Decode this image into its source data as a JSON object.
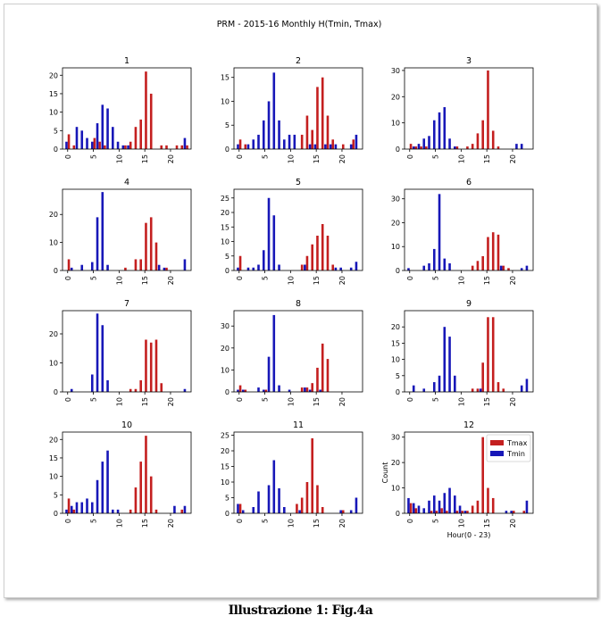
{
  "caption": "Illustrazione   1: Fig.4a",
  "colors": {
    "tmax": "#c41f1f",
    "tmin": "#1717b8",
    "axis": "#000000"
  },
  "chart_data": {
    "type": "bar",
    "title": "PRM - 2015-16 Monthly H(Tmin, Tmax)",
    "legend": {
      "placement": "top-right",
      "subplot": "12",
      "entries": [
        "Tmax",
        "Tmin"
      ]
    },
    "x_ticks": [
      "0",
      "5",
      "10",
      "15",
      "20"
    ],
    "x_range": [
      0,
      24
    ],
    "subplots": [
      {
        "title": "1",
        "ylim": [
          0,
          22
        ],
        "yticks": [
          "0",
          "5",
          "10",
          "15",
          "20"
        ],
        "tmax": [
          [
            0,
            4
          ],
          [
            1,
            1
          ],
          [
            5,
            3
          ],
          [
            6,
            2
          ],
          [
            7,
            1
          ],
          [
            11,
            1
          ],
          [
            12,
            2
          ],
          [
            13,
            6
          ],
          [
            14,
            8
          ],
          [
            15,
            21
          ],
          [
            16,
            15
          ],
          [
            18,
            1
          ],
          [
            19,
            1
          ],
          [
            21,
            1
          ],
          [
            22,
            1
          ],
          [
            23,
            1
          ]
        ],
        "tmin": [
          [
            0,
            2
          ],
          [
            2,
            6
          ],
          [
            3,
            5
          ],
          [
            4,
            3
          ],
          [
            5,
            2
          ],
          [
            6,
            7
          ],
          [
            7,
            12
          ],
          [
            8,
            11
          ],
          [
            9,
            6
          ],
          [
            10,
            2
          ],
          [
            11,
            1
          ],
          [
            12,
            1
          ],
          [
            23,
            3
          ]
        ]
      },
      {
        "title": "2",
        "ylim": [
          0,
          17
        ],
        "yticks": [
          "0",
          "5",
          "10",
          "15"
        ],
        "tmax": [
          [
            0,
            2
          ],
          [
            1,
            1
          ],
          [
            12,
            3
          ],
          [
            13,
            7
          ],
          [
            14,
            4
          ],
          [
            15,
            13
          ],
          [
            16,
            15
          ],
          [
            17,
            7
          ],
          [
            18,
            2
          ],
          [
            20,
            1
          ],
          [
            22,
            2
          ]
        ],
        "tmin": [
          [
            0,
            1
          ],
          [
            2,
            1
          ],
          [
            3,
            2
          ],
          [
            4,
            3
          ],
          [
            5,
            6
          ],
          [
            6,
            10
          ],
          [
            7,
            16
          ],
          [
            8,
            6
          ],
          [
            9,
            2
          ],
          [
            10,
            3
          ],
          [
            11,
            3
          ],
          [
            14,
            1
          ],
          [
            15,
            1
          ],
          [
            17,
            1
          ],
          [
            18,
            1
          ],
          [
            19,
            1
          ],
          [
            22,
            1
          ],
          [
            23,
            3
          ]
        ]
      },
      {
        "title": "3",
        "ylim": [
          0,
          31
        ],
        "yticks": [
          "0",
          "10",
          "20",
          "30"
        ],
        "tmax": [
          [
            0,
            2
          ],
          [
            1,
            1
          ],
          [
            2,
            1
          ],
          [
            3,
            1
          ],
          [
            9,
            1
          ],
          [
            11,
            1
          ],
          [
            12,
            2
          ],
          [
            13,
            6
          ],
          [
            14,
            11
          ],
          [
            15,
            30
          ],
          [
            16,
            7
          ],
          [
            17,
            1
          ]
        ],
        "tmin": [
          [
            1,
            1
          ],
          [
            2,
            2
          ],
          [
            3,
            4
          ],
          [
            4,
            5
          ],
          [
            5,
            11
          ],
          [
            6,
            14
          ],
          [
            7,
            16
          ],
          [
            8,
            4
          ],
          [
            9,
            1
          ],
          [
            21,
            2
          ],
          [
            22,
            2
          ]
        ]
      },
      {
        "title": "4",
        "ylim": [
          0,
          29
        ],
        "yticks": [
          "0",
          "10",
          "20"
        ],
        "tmax": [
          [
            0,
            4
          ],
          [
            11,
            1
          ],
          [
            13,
            4
          ],
          [
            14,
            4
          ],
          [
            15,
            17
          ],
          [
            16,
            19
          ],
          [
            17,
            10
          ],
          [
            19,
            1
          ]
        ],
        "tmin": [
          [
            1,
            1
          ],
          [
            3,
            2
          ],
          [
            5,
            3
          ],
          [
            6,
            19
          ],
          [
            7,
            28
          ],
          [
            8,
            2
          ],
          [
            18,
            2
          ],
          [
            19,
            1
          ],
          [
            23,
            4
          ]
        ]
      },
      {
        "title": "5",
        "ylim": [
          0,
          28
        ],
        "yticks": [
          "0",
          "5",
          "10",
          "15",
          "20",
          "25"
        ],
        "tmax": [
          [
            0,
            5
          ],
          [
            12,
            2
          ],
          [
            13,
            5
          ],
          [
            14,
            9
          ],
          [
            15,
            12
          ],
          [
            16,
            16
          ],
          [
            17,
            12
          ],
          [
            18,
            2
          ]
        ],
        "tmin": [
          [
            0,
            1
          ],
          [
            2,
            1
          ],
          [
            3,
            1
          ],
          [
            4,
            2
          ],
          [
            5,
            7
          ],
          [
            6,
            25
          ],
          [
            7,
            19
          ],
          [
            8,
            2
          ],
          [
            13,
            2
          ],
          [
            19,
            1
          ],
          [
            20,
            1
          ],
          [
            22,
            1
          ],
          [
            23,
            3
          ]
        ]
      },
      {
        "title": "6",
        "ylim": [
          0,
          34
        ],
        "yticks": [
          "0",
          "10",
          "20",
          "30"
        ],
        "tmax": [
          [
            12,
            2
          ],
          [
            13,
            4
          ],
          [
            14,
            6
          ],
          [
            15,
            14
          ],
          [
            16,
            16
          ],
          [
            17,
            15
          ],
          [
            18,
            2
          ],
          [
            19,
            1
          ]
        ],
        "tmin": [
          [
            0,
            1
          ],
          [
            3,
            2
          ],
          [
            4,
            3
          ],
          [
            5,
            9
          ],
          [
            6,
            32
          ],
          [
            7,
            5
          ],
          [
            8,
            3
          ],
          [
            18,
            2
          ],
          [
            22,
            1
          ],
          [
            23,
            2
          ]
        ]
      },
      {
        "title": "7",
        "ylim": [
          0,
          28
        ],
        "yticks": [
          "0",
          "10",
          "20"
        ],
        "tmax": [
          [
            12,
            1
          ],
          [
            13,
            1
          ],
          [
            14,
            4
          ],
          [
            15,
            18
          ],
          [
            16,
            17
          ],
          [
            17,
            18
          ],
          [
            18,
            3
          ]
        ],
        "tmin": [
          [
            1,
            1
          ],
          [
            5,
            6
          ],
          [
            6,
            27
          ],
          [
            7,
            23
          ],
          [
            8,
            4
          ],
          [
            23,
            1
          ]
        ]
      },
      {
        "title": "8",
        "ylim": [
          0,
          37
        ],
        "yticks": [
          "0",
          "10",
          "20",
          "30"
        ],
        "tmax": [
          [
            0,
            3
          ],
          [
            1,
            1
          ],
          [
            5,
            1
          ],
          [
            12,
            2
          ],
          [
            13,
            2
          ],
          [
            14,
            4
          ],
          [
            15,
            11
          ],
          [
            16,
            22
          ],
          [
            17,
            15
          ]
        ],
        "tmin": [
          [
            0,
            1
          ],
          [
            1,
            1
          ],
          [
            4,
            2
          ],
          [
            5,
            1
          ],
          [
            6,
            16
          ],
          [
            7,
            35
          ],
          [
            8,
            3
          ],
          [
            10,
            1
          ],
          [
            13,
            2
          ],
          [
            14,
            1
          ],
          [
            16,
            1
          ]
        ]
      },
      {
        "title": "9",
        "ylim": [
          0,
          25
        ],
        "yticks": [
          "0",
          "5",
          "10",
          "15",
          "20"
        ],
        "tmax": [
          [
            12,
            1
          ],
          [
            13,
            1
          ],
          [
            14,
            9
          ],
          [
            15,
            23
          ],
          [
            16,
            23
          ],
          [
            17,
            3
          ],
          [
            18,
            1
          ]
        ],
        "tmin": [
          [
            1,
            2
          ],
          [
            3,
            1
          ],
          [
            5,
            3
          ],
          [
            6,
            5
          ],
          [
            7,
            20
          ],
          [
            8,
            17
          ],
          [
            9,
            5
          ],
          [
            14,
            1
          ],
          [
            22,
            2
          ],
          [
            23,
            4
          ]
        ]
      },
      {
        "title": "10",
        "ylim": [
          0,
          22
        ],
        "yticks": [
          "0",
          "5",
          "10",
          "15",
          "20"
        ],
        "tmax": [
          [
            0,
            4
          ],
          [
            1,
            1
          ],
          [
            12,
            1
          ],
          [
            13,
            7
          ],
          [
            14,
            14
          ],
          [
            15,
            21
          ],
          [
            16,
            10
          ],
          [
            17,
            1
          ],
          [
            22,
            1
          ]
        ],
        "tmin": [
          [
            0,
            1
          ],
          [
            1,
            2
          ],
          [
            2,
            3
          ],
          [
            3,
            3
          ],
          [
            4,
            4
          ],
          [
            5,
            3
          ],
          [
            6,
            9
          ],
          [
            7,
            14
          ],
          [
            8,
            17
          ],
          [
            9,
            1
          ],
          [
            10,
            1
          ],
          [
            21,
            2
          ],
          [
            23,
            2
          ]
        ]
      },
      {
        "title": "11",
        "ylim": [
          0,
          26
        ],
        "yticks": [
          "0",
          "5",
          "10",
          "15",
          "20",
          "25"
        ],
        "tmax": [
          [
            0,
            3
          ],
          [
            11,
            3
          ],
          [
            12,
            5
          ],
          [
            13,
            10
          ],
          [
            14,
            24
          ],
          [
            15,
            9
          ],
          [
            16,
            2
          ],
          [
            20,
            1
          ]
        ],
        "tmin": [
          [
            0,
            3
          ],
          [
            1,
            1
          ],
          [
            3,
            2
          ],
          [
            4,
            7
          ],
          [
            6,
            9
          ],
          [
            7,
            17
          ],
          [
            8,
            8
          ],
          [
            9,
            2
          ],
          [
            12,
            1
          ],
          [
            20,
            1
          ],
          [
            22,
            1
          ],
          [
            23,
            5
          ]
        ]
      },
      {
        "title": "12",
        "ylim": [
          0,
          32
        ],
        "yticks": [
          "0",
          "10",
          "20",
          "30"
        ],
        "ylabel": "Count",
        "xlabel": "Hour(0 - 23)",
        "tmax": [
          [
            0,
            4
          ],
          [
            1,
            2
          ],
          [
            4,
            1
          ],
          [
            5,
            1
          ],
          [
            6,
            2
          ],
          [
            7,
            1
          ],
          [
            9,
            1
          ],
          [
            10,
            1
          ],
          [
            11,
            1
          ],
          [
            12,
            3
          ],
          [
            13,
            5
          ],
          [
            14,
            30
          ],
          [
            15,
            10
          ],
          [
            16,
            6
          ],
          [
            20,
            1
          ],
          [
            22,
            1
          ]
        ],
        "tmin": [
          [
            0,
            6
          ],
          [
            1,
            4
          ],
          [
            2,
            3
          ],
          [
            3,
            2
          ],
          [
            4,
            5
          ],
          [
            5,
            7
          ],
          [
            6,
            5
          ],
          [
            7,
            8
          ],
          [
            8,
            10
          ],
          [
            9,
            7
          ],
          [
            10,
            3
          ],
          [
            11,
            1
          ],
          [
            19,
            1
          ],
          [
            20,
            1
          ],
          [
            23,
            5
          ]
        ]
      }
    ]
  }
}
